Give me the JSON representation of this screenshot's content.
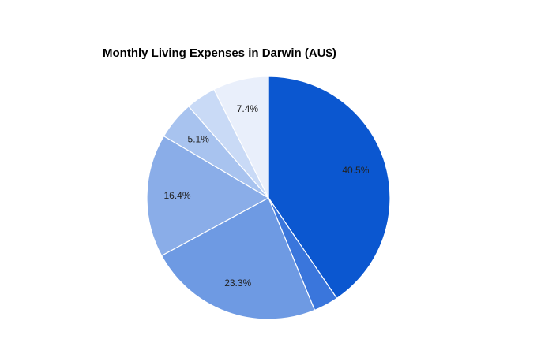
{
  "chart_data": {
    "type": "pie",
    "title": "Monthly Living Expenses in Darwin (AU$)",
    "values": [
      40.5,
      3.3,
      23.3,
      16.4,
      5.1,
      4.0,
      7.4
    ],
    "value_labels": [
      "40.5%",
      null,
      "23.3%",
      "16.4%",
      "5.1%",
      null,
      "7.4%"
    ],
    "colors": [
      "#0b57d0",
      "#3a76dc",
      "#6e9ae3",
      "#8aade8",
      "#a8c3ef",
      "#c9daf6",
      "#e9effb"
    ]
  }
}
